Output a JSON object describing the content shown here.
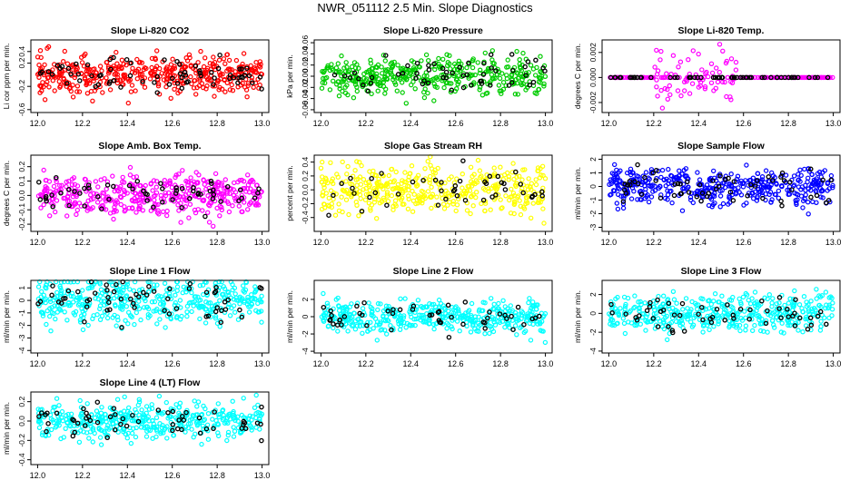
{
  "page_title": "NWR_051112  2.5 Min. Slope Diagnostics",
  "colors": {
    "red": "#ff0000",
    "green": "#00cc00",
    "magenta": "#ff00ff",
    "yellow": "#ffff00",
    "blue": "#0000ff",
    "cyan": "#00ffff",
    "black": "#000000"
  },
  "chart_data": [
    {
      "id": "c1",
      "type": "scatter",
      "title": "Slope Li-820 CO2",
      "ylabel": "Li cor ppm per min.",
      "xlabel": "",
      "xlim": [
        11.97,
        13.03
      ],
      "ylim": [
        -0.65,
        0.6
      ],
      "xticks": [
        "12.0",
        "12.2",
        "12.4",
        "12.6",
        "12.8",
        "13.0"
      ],
      "yticks": [
        "-0.6",
        "-0.2",
        "0.2",
        "0.4"
      ],
      "color": "#ff0000",
      "spread": 0.17,
      "n_colored": 420,
      "n_black": 70,
      "seed": 11
    },
    {
      "id": "c2",
      "type": "scatter",
      "title": "Slope Li-820 Pressure",
      "ylabel": "kPa per min.",
      "xlabel": "",
      "xlim": [
        11.97,
        13.03
      ],
      "ylim": [
        -0.065,
        0.065
      ],
      "xticks": [
        "12.0",
        "12.2",
        "12.4",
        "12.6",
        "12.8",
        "13.0"
      ],
      "yticks": [
        "-0.06",
        "-0.04",
        "-0.02",
        "0.00",
        "0.02",
        "0.04",
        "0.06"
      ],
      "color": "#00cc00",
      "spread": 0.018,
      "n_colored": 400,
      "n_black": 55,
      "seed": 23
    },
    {
      "id": "c3",
      "type": "scatter",
      "title": "Slope Li-820 Temp.",
      "ylabel": "degrees C per min.",
      "xlabel": "",
      "xlim": [
        11.97,
        13.03
      ],
      "ylim": [
        -0.0028,
        0.003
      ],
      "xticks": [
        "12.0",
        "12.2",
        "12.4",
        "12.6",
        "12.8",
        "13.0"
      ],
      "yticks": [
        "-0.002",
        "0.000",
        "0.002"
      ],
      "color": "#ff00ff",
      "spread": 0.001,
      "n_colored": 220,
      "n_black": 60,
      "seed": 37,
      "mode": "temp"
    },
    {
      "id": "c4",
      "type": "scatter",
      "title": "Slope Amb. Box Temp.",
      "ylabel": "degrees C per min.",
      "xlabel": "",
      "xlim": [
        11.97,
        13.03
      ],
      "ylim": [
        -0.25,
        0.28
      ],
      "xticks": [
        "12.0",
        "12.2",
        "12.4",
        "12.6",
        "12.8",
        "13.0"
      ],
      "yticks": [
        "-0.2",
        "-0.1",
        "0.0",
        "0.1",
        "0.2"
      ],
      "color": "#ff00ff",
      "spread": 0.07,
      "n_colored": 420,
      "n_black": 60,
      "seed": 41
    },
    {
      "id": "c5",
      "type": "scatter",
      "title": "Slope Gas Stream RH",
      "ylabel": "percent per min.",
      "xlabel": "",
      "xlim": [
        11.97,
        13.03
      ],
      "ylim": [
        -0.6,
        0.5
      ],
      "xticks": [
        "12.0",
        "12.2",
        "12.4",
        "12.6",
        "12.8",
        "13.0"
      ],
      "yticks": [
        "-0.4",
        "-0.2",
        "0.0",
        "0.2",
        "0.4"
      ],
      "color": "#ffff00",
      "spread": 0.18,
      "n_colored": 420,
      "n_black": 45,
      "seed": 53
    },
    {
      "id": "c6",
      "type": "scatter",
      "title": "Slope Sample Flow",
      "ylabel": "ml/min per min.",
      "xlabel": "",
      "xlim": [
        11.97,
        13.03
      ],
      "ylim": [
        -3.3,
        2.3
      ],
      "xticks": [
        "12.0",
        "12.2",
        "12.4",
        "12.6",
        "12.8",
        "13.0"
      ],
      "yticks": [
        "-3",
        "-2",
        "-1",
        "0",
        "1",
        "2"
      ],
      "color": "#0000ff",
      "spread": 0.7,
      "n_colored": 420,
      "n_black": 60,
      "seed": 67
    },
    {
      "id": "c7",
      "type": "scatter",
      "title": "Slope Line 1 Flow",
      "ylabel": "ml/min per min.",
      "xlabel": "",
      "xlim": [
        11.97,
        13.03
      ],
      "ylim": [
        -4.2,
        1.6
      ],
      "xticks": [
        "12.0",
        "12.2",
        "12.4",
        "12.6",
        "12.8",
        "13.0"
      ],
      "yticks": [
        "-4",
        "-3",
        "-2",
        "-1",
        "0",
        "1"
      ],
      "color": "#00ffff",
      "spread": 1.0,
      "n_colored": 420,
      "n_black": 60,
      "seed": 71
    },
    {
      "id": "c8",
      "type": "scatter",
      "title": "Slope Line 2 Flow",
      "ylabel": "ml/min per min.",
      "xlabel": "",
      "xlim": [
        11.97,
        13.03
      ],
      "ylim": [
        -4.2,
        4.2
      ],
      "xticks": [
        "12.0",
        "12.2",
        "12.4",
        "12.6",
        "12.8",
        "13.0"
      ],
      "yticks": [
        "-4",
        "-2",
        "0",
        "2"
      ],
      "color": "#00ffff",
      "spread": 1.0,
      "n_colored": 420,
      "n_black": 50,
      "seed": 83
    },
    {
      "id": "c9",
      "type": "scatter",
      "title": "Slope Line 3 Flow",
      "ylabel": "ml/min per min.",
      "xlabel": "",
      "xlim": [
        11.97,
        13.03
      ],
      "ylim": [
        -4.2,
        3.5
      ],
      "xticks": [
        "12.0",
        "12.2",
        "12.4",
        "12.6",
        "12.8",
        "13.0"
      ],
      "yticks": [
        "-4",
        "-2",
        "0",
        "2"
      ],
      "color": "#00ffff",
      "spread": 1.0,
      "n_colored": 420,
      "n_black": 55,
      "seed": 97
    },
    {
      "id": "c10",
      "type": "scatter",
      "title": "Slope Line 4 (LT) Flow",
      "ylabel": "ml/min per min.",
      "xlabel": "",
      "xlim": [
        11.97,
        13.03
      ],
      "ylim": [
        -0.45,
        0.3
      ],
      "xticks": [
        "12.0",
        "12.2",
        "12.4",
        "12.6",
        "12.8",
        "13.0"
      ],
      "yticks": [
        "-0.4",
        "-0.2",
        "0.0",
        "0.2"
      ],
      "color": "#00ffff",
      "spread": 0.1,
      "n_colored": 420,
      "n_black": 55,
      "seed": 103
    }
  ]
}
